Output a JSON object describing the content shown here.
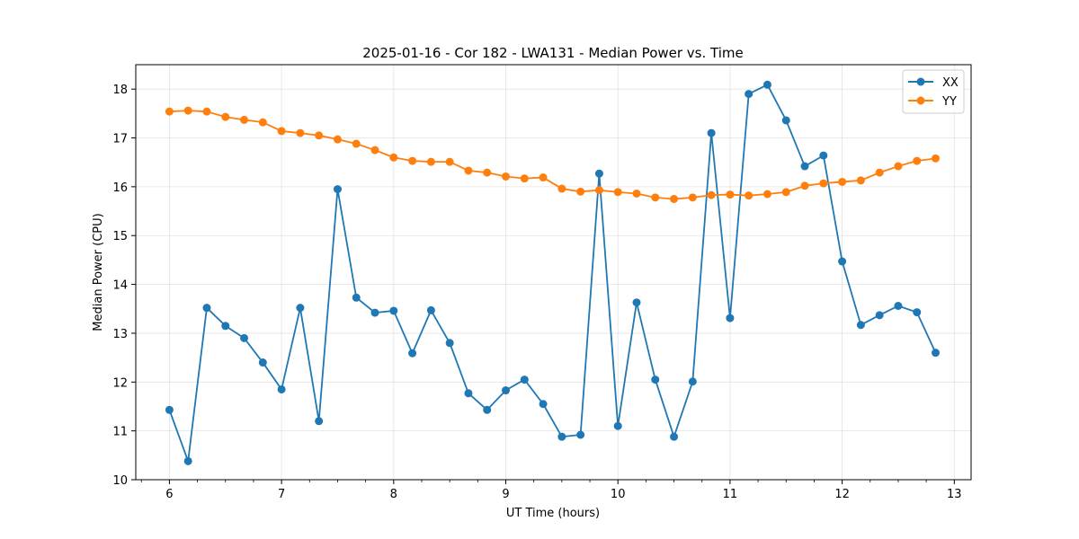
{
  "chart_data": {
    "type": "line",
    "title": "2025-01-16 - Cor 182 - LWA131 - Median Power vs. Time",
    "xlabel": "UT Time (hours)",
    "ylabel": "Median Power (CPU)",
    "xlim": [
      5.7,
      13.15
    ],
    "ylim": [
      10,
      18.5
    ],
    "xticks": [
      6,
      7,
      8,
      9,
      10,
      11,
      12,
      13
    ],
    "yticks": [
      10,
      11,
      12,
      13,
      14,
      15,
      16,
      17,
      18
    ],
    "grid": true,
    "legend_position": "top-right",
    "x": [
      6.0,
      6.1667,
      6.3333,
      6.5,
      6.6667,
      6.8333,
      7.0,
      7.1667,
      7.3333,
      7.5,
      7.6667,
      7.8333,
      8.0,
      8.1667,
      8.3333,
      8.5,
      8.6667,
      8.8333,
      9.0,
      9.1667,
      9.3333,
      9.5,
      9.6667,
      9.8333,
      10.0,
      10.1667,
      10.3333,
      10.5,
      10.6667,
      10.8333,
      11.0,
      11.1667,
      11.3333,
      11.5,
      11.6667,
      11.8333,
      12.0,
      12.1667,
      12.3333,
      12.5,
      12.6667,
      12.8333
    ],
    "series": [
      {
        "name": "XX",
        "color": "#1f77b4",
        "values": [
          11.43,
          10.38,
          13.52,
          13.15,
          12.9,
          12.4,
          11.85,
          13.52,
          11.2,
          15.95,
          13.73,
          13.42,
          13.46,
          12.59,
          13.47,
          12.8,
          11.77,
          11.43,
          11.83,
          12.05,
          11.55,
          10.88,
          10.92,
          16.27,
          11.1,
          13.63,
          12.05,
          10.88,
          12.01,
          17.1,
          13.31,
          17.9,
          18.09,
          17.36,
          16.42,
          16.64,
          14.47,
          13.17,
          13.37,
          13.56,
          13.43,
          12.6
        ]
      },
      {
        "name": "YY",
        "color": "#ff7f0e",
        "values": [
          17.54,
          17.56,
          17.54,
          17.43,
          17.37,
          17.32,
          17.14,
          17.1,
          17.05,
          16.97,
          16.88,
          16.75,
          16.6,
          16.53,
          16.51,
          16.51,
          16.33,
          16.29,
          16.21,
          16.17,
          16.19,
          15.96,
          15.9,
          15.93,
          15.89,
          15.86,
          15.78,
          15.75,
          15.78,
          15.83,
          15.84,
          15.82,
          15.85,
          15.89,
          16.02,
          16.07,
          16.1,
          16.13,
          16.29,
          16.42,
          16.53,
          16.58
        ]
      }
    ]
  }
}
